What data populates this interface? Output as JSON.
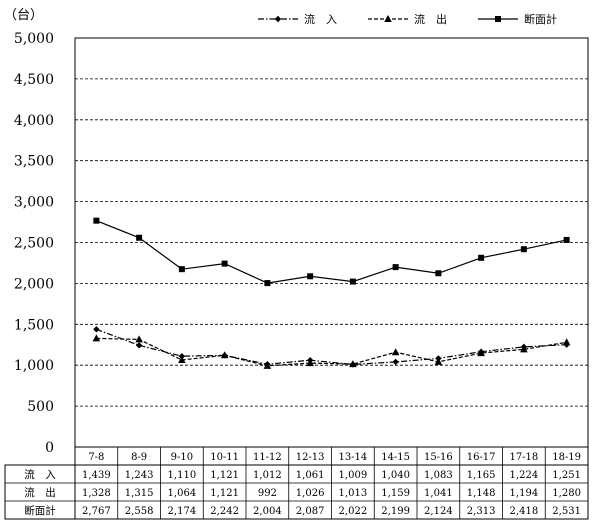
{
  "chart_data": {
    "type": "line",
    "unit_label": "（台）",
    "categories": [
      "7-8",
      "8-9",
      "9-10",
      "10-11",
      "11-12",
      "12-13",
      "13-14",
      "14-15",
      "15-16",
      "16-17",
      "17-18",
      "18-19"
    ],
    "ylim": [
      0,
      5000
    ],
    "yticks": [
      0,
      500,
      1000,
      1500,
      2000,
      2500,
      3000,
      3500,
      4000,
      4500,
      5000
    ],
    "ytick_labels": [
      "0",
      "500",
      "1,000",
      "1,500",
      "2,000",
      "2,500",
      "3,000",
      "3,500",
      "4,000",
      "4,500",
      "5,000"
    ],
    "grid": true,
    "legend_position": "top-right",
    "series": [
      {
        "name": "流　入",
        "table_label": "流　入",
        "marker": "diamond",
        "line_style": "dash-dot",
        "values": [
          1439,
          1243,
          1110,
          1121,
          1012,
          1061,
          1009,
          1040,
          1083,
          1165,
          1224,
          1251
        ],
        "value_labels": [
          "1,439",
          "1,243",
          "1,110",
          "1,121",
          "1,012",
          "1,061",
          "1,009",
          "1,040",
          "1,083",
          "1,165",
          "1,224",
          "1,251"
        ]
      },
      {
        "name": "流　出",
        "table_label": "流　出",
        "marker": "triangle",
        "line_style": "dashed",
        "values": [
          1328,
          1315,
          1064,
          1121,
          992,
          1026,
          1013,
          1159,
          1041,
          1148,
          1194,
          1280
        ],
        "value_labels": [
          "1,328",
          "1,315",
          "1,064",
          "1,121",
          "992",
          "1,026",
          "1,013",
          "1,159",
          "1,041",
          "1,148",
          "1,194",
          "1,280"
        ]
      },
      {
        "name": "断面計",
        "table_label": "断面計",
        "marker": "square",
        "line_style": "solid",
        "values": [
          2767,
          2558,
          2174,
          2242,
          2004,
          2087,
          2022,
          2199,
          2124,
          2313,
          2418,
          2531
        ],
        "value_labels": [
          "2,767",
          "2,558",
          "2,174",
          "2,242",
          "2,004",
          "2,087",
          "2,022",
          "2,199",
          "2,124",
          "2,313",
          "2,418",
          "2,531"
        ]
      }
    ]
  }
}
